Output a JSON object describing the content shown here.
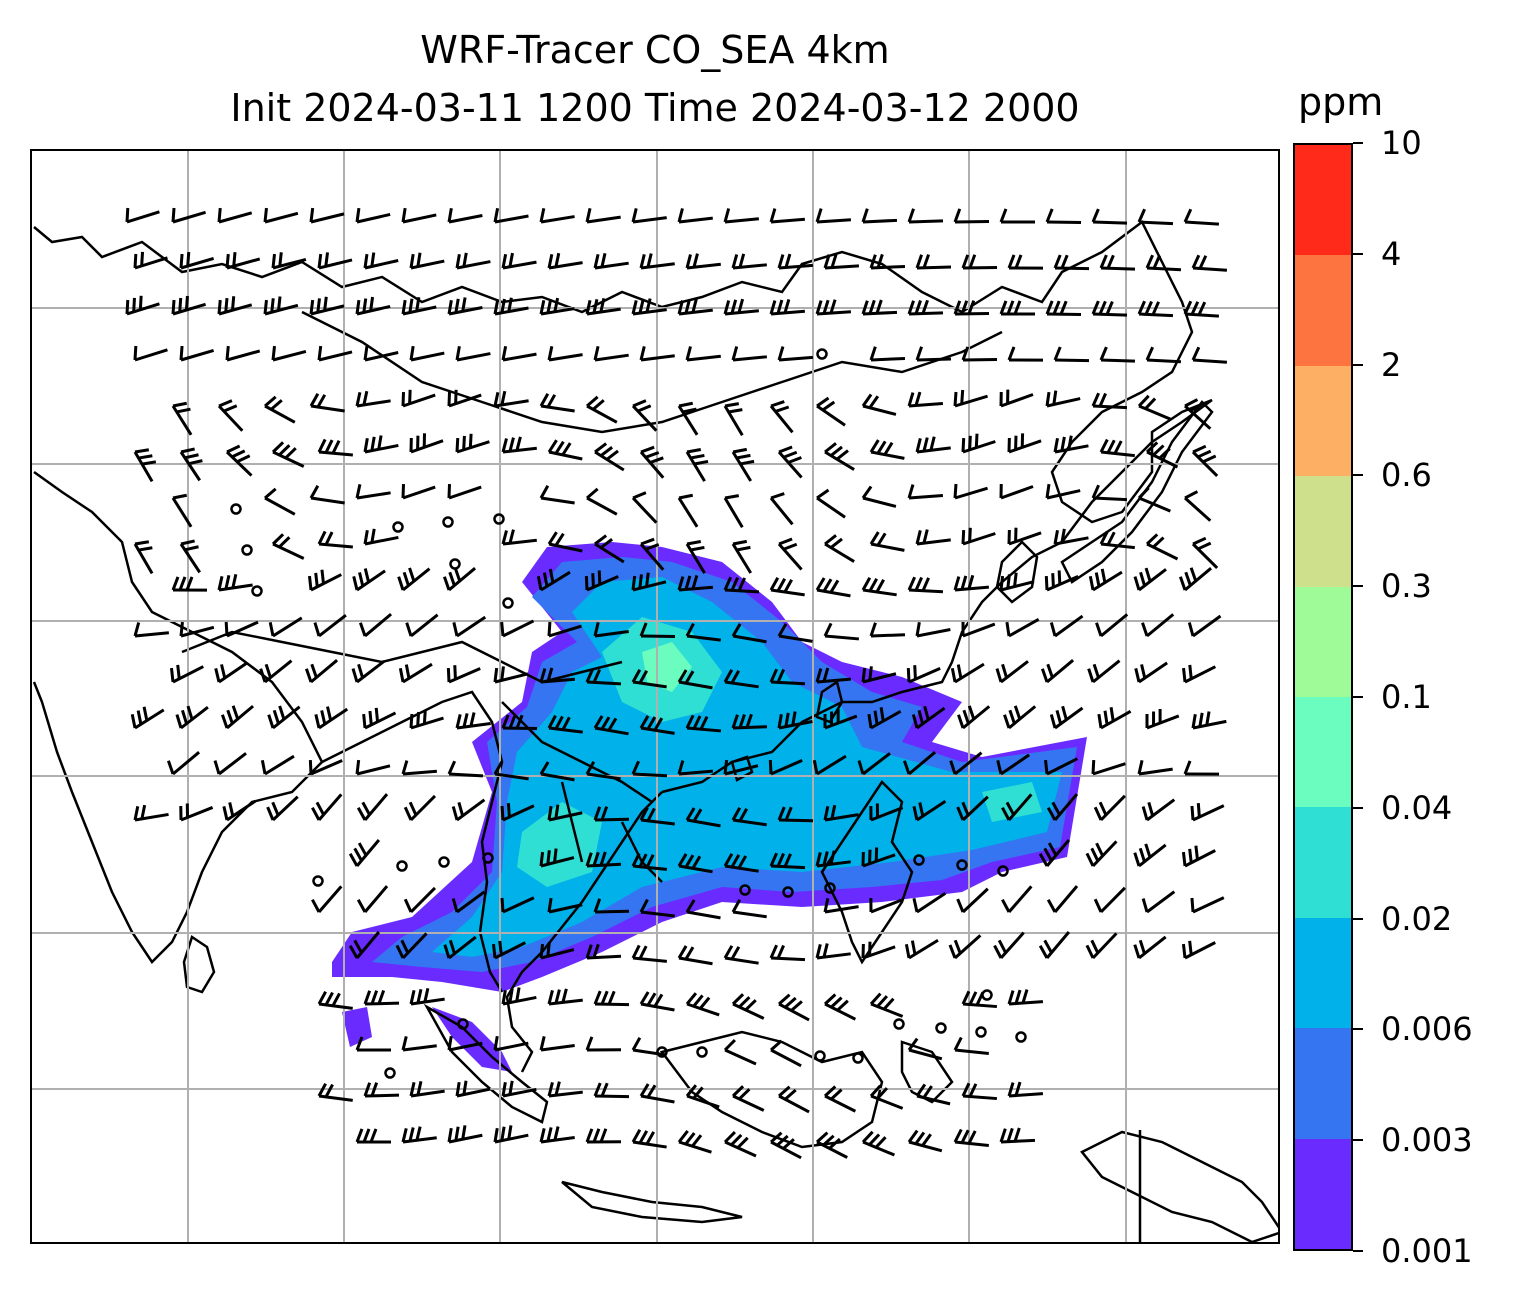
{
  "title": {
    "line1": "WRF-Tracer CO_SEA 4km",
    "line2": "Init 2024-03-11 1200 Time 2024-03-12 2000"
  },
  "colorbar": {
    "unit": "ppm",
    "levels": [
      "0.001",
      "0.003",
      "0.006",
      "0.02",
      "0.04",
      "0.1",
      "0.3",
      "0.6",
      "2",
      "4",
      "10"
    ],
    "colors": [
      "#6a2bff",
      "#3575f2",
      "#00b1ea",
      "#30dfd4",
      "#6bfcc0",
      "#9ffa98",
      "#cfe08c",
      "#fdb064",
      "#fe7440",
      "#ff2a1a"
    ]
  },
  "map": {
    "gridlines": true,
    "grid_color": "#b0b0b0",
    "coastline_color": "#000000",
    "wind_barb_color": "#000000"
  }
}
